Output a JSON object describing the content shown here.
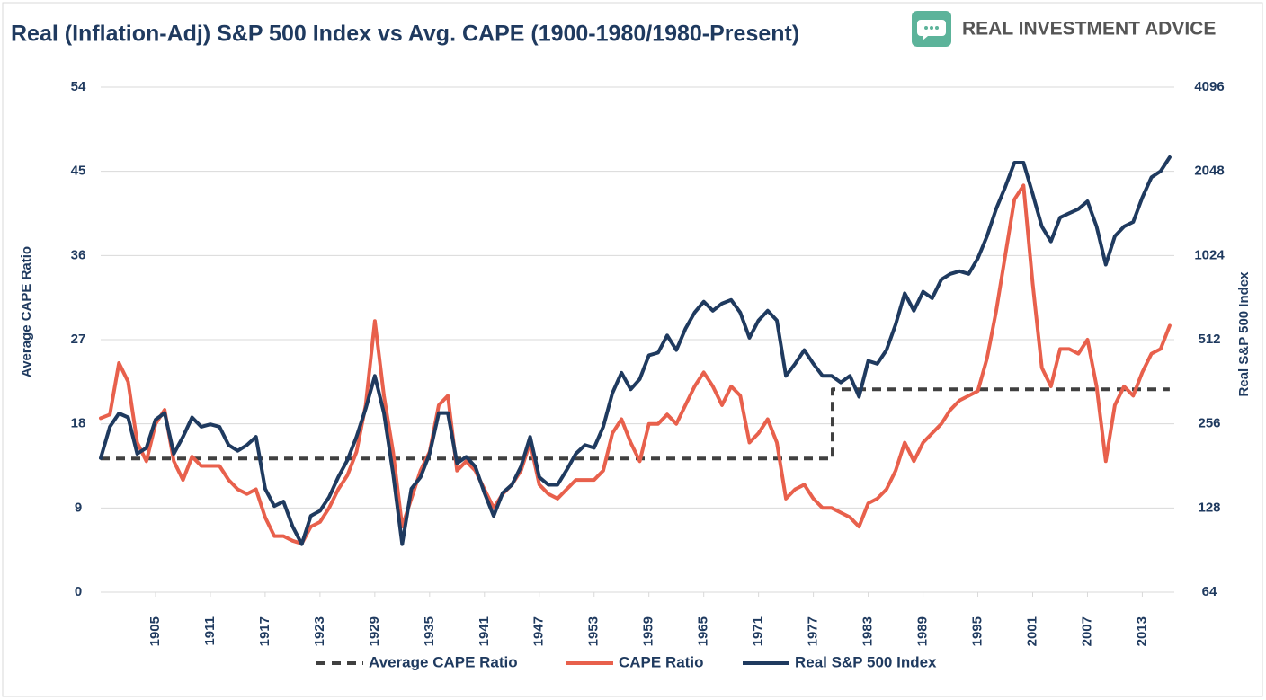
{
  "chart_data": {
    "type": "line",
    "title": "Real (Inflation-Adj)  S&P 500 Index vs Avg. CAPE (1900-1980/1980-Present)",
    "brand": "REAL INVESTMENT ADVICE",
    "y_label": "Average CAPE Ratio",
    "y2_label": "Real S&P 500 Index",
    "xlim": [
      1899,
      2016.5
    ],
    "xticks": [
      1905,
      1911,
      1917,
      1923,
      1929,
      1935,
      1941,
      1947,
      1953,
      1959,
      1965,
      1971,
      1977,
      1983,
      1989,
      1995,
      2001,
      2007,
      2013
    ],
    "ylim": [
      0,
      54
    ],
    "yticks": [
      0,
      9,
      18,
      27,
      36,
      45,
      54
    ],
    "y2lim": [
      64,
      4096
    ],
    "y2ticks": [
      64,
      128,
      256,
      512,
      1024,
      2048,
      4096
    ],
    "y2scale": "log",
    "grid": true,
    "legend": "bottom",
    "x": [
      1899,
      1900,
      1901,
      1902,
      1903,
      1904,
      1905,
      1906,
      1907,
      1908,
      1909,
      1910,
      1911,
      1912,
      1913,
      1914,
      1915,
      1916,
      1917,
      1918,
      1919,
      1920,
      1921,
      1922,
      1923,
      1924,
      1925,
      1926,
      1927,
      1928,
      1929,
      1930,
      1931,
      1932,
      1933,
      1934,
      1935,
      1936,
      1937,
      1938,
      1939,
      1940,
      1941,
      1942,
      1943,
      1944,
      1945,
      1946,
      1947,
      1948,
      1949,
      1950,
      1951,
      1952,
      1953,
      1954,
      1955,
      1956,
      1957,
      1958,
      1959,
      1960,
      1961,
      1962,
      1963,
      1964,
      1965,
      1966,
      1967,
      1968,
      1969,
      1970,
      1971,
      1972,
      1973,
      1974,
      1975,
      1976,
      1977,
      1978,
      1979,
      1980,
      1981,
      1982,
      1983,
      1984,
      1985,
      1986,
      1987,
      1988,
      1989,
      1990,
      1991,
      1992,
      1993,
      1994,
      1995,
      1996,
      1997,
      1998,
      1999,
      2000,
      2001,
      2002,
      2003,
      2004,
      2005,
      2006,
      2007,
      2008,
      2009,
      2010,
      2011,
      2012,
      2013,
      2014,
      2015,
      2016
    ],
    "series": [
      {
        "name": "Average CAPE Ratio",
        "color": "#404040",
        "style": "dashed",
        "x": [
          1899,
          1979.1,
          1979.1,
          2016
        ],
        "values": [
          14.3,
          14.3,
          21.7,
          21.7
        ]
      },
      {
        "name": "CAPE Ratio",
        "color": "#e8604c",
        "style": "solid",
        "values": [
          18.6,
          19,
          24.5,
          22.5,
          16,
          14,
          18,
          19.5,
          14,
          12,
          14.5,
          13.5,
          13.5,
          13.5,
          12,
          11,
          10.5,
          11,
          8,
          6,
          6,
          5.5,
          5.2,
          7,
          7.5,
          9,
          11,
          12.5,
          15,
          20,
          29,
          21,
          15,
          7,
          10,
          13,
          15,
          20,
          21,
          13,
          14,
          13,
          11,
          9,
          10.5,
          11.5,
          13,
          16,
          11.5,
          10.5,
          10,
          11,
          12,
          12,
          12,
          13,
          17,
          18.5,
          16,
          14,
          18,
          18,
          19,
          18,
          20,
          22,
          23.5,
          22,
          20,
          22,
          21,
          16,
          17,
          18.5,
          16,
          10,
          11,
          11.5,
          10,
          9,
          9,
          8.5,
          8,
          7,
          9.5,
          10,
          11,
          13,
          16,
          14,
          16,
          17,
          18,
          19.5,
          20.5,
          21,
          21.5,
          25,
          30,
          36,
          42,
          43.5,
          33,
          24,
          22,
          26,
          26,
          25.5,
          27,
          22,
          14,
          20,
          22,
          21,
          23.5,
          25.5,
          26,
          28.5
        ]
      },
      {
        "name": "Real S&P 500 Index",
        "color": "#1f3a5f",
        "style": "solid",
        "axis": "y2",
        "values": [
          193,
          250,
          279,
          270,
          200,
          210,
          265,
          280,
          200,
          230,
          270,
          250,
          255,
          250,
          215,
          205,
          215,
          230,
          150,
          130,
          135,
          110,
          95,
          120,
          125,
          140,
          165,
          190,
          230,
          290,
          380,
          280,
          170,
          95,
          150,
          165,
          200,
          280,
          280,
          185,
          195,
          180,
          145,
          120,
          145,
          155,
          180,
          230,
          165,
          155,
          155,
          175,
          200,
          215,
          210,
          250,
          330,
          390,
          340,
          370,
          450,
          460,
          530,
          470,
          560,
          640,
          700,
          650,
          690,
          710,
          640,
          520,
          600,
          650,
          600,
          380,
          420,
          470,
          420,
          380,
          380,
          360,
          380,
          320,
          430,
          420,
          470,
          580,
          750,
          650,
          760,
          720,
          840,
          880,
          900,
          880,
          1000,
          1200,
          1500,
          1800,
          2200,
          2200,
          1700,
          1300,
          1150,
          1400,
          1450,
          1500,
          1600,
          1300,
          950,
          1200,
          1300,
          1350,
          1650,
          1950,
          2050,
          2300
        ]
      }
    ]
  }
}
